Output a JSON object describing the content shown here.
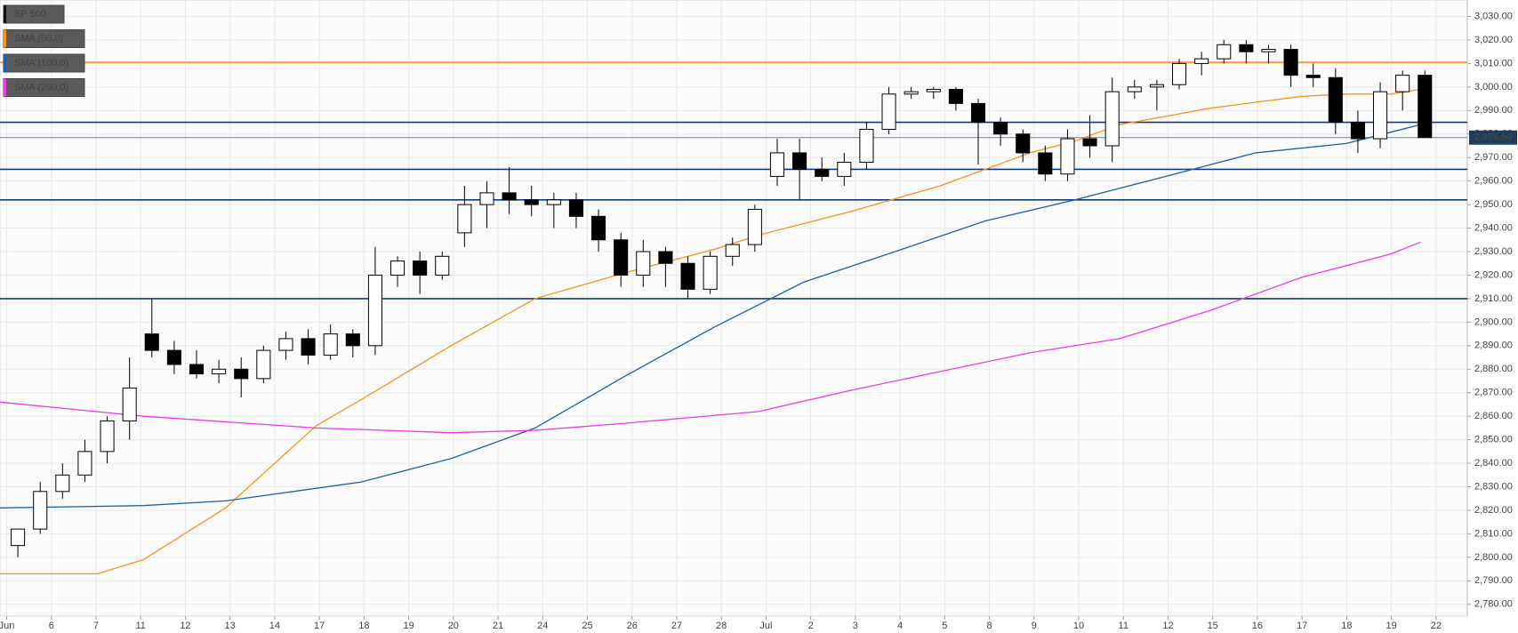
{
  "chart_data": {
    "type": "candlestick",
    "xlim": [
      -0.15,
      32.7
    ],
    "ylim": [
      2775,
      3037
    ],
    "grid": true,
    "xticks": [
      {
        "value": 0,
        "label": "Jun"
      },
      {
        "value": 1,
        "label": "6"
      },
      {
        "value": 2,
        "label": "7"
      },
      {
        "value": 3,
        "label": "11"
      },
      {
        "value": 4,
        "label": "12"
      },
      {
        "value": 5,
        "label": "13"
      },
      {
        "value": 6,
        "label": "14"
      },
      {
        "value": 7,
        "label": "17"
      },
      {
        "value": 8,
        "label": "18"
      },
      {
        "value": 9,
        "label": "19"
      },
      {
        "value": 10,
        "label": "20"
      },
      {
        "value": 11,
        "label": "21"
      },
      {
        "value": 12,
        "label": "24"
      },
      {
        "value": 13,
        "label": "25"
      },
      {
        "value": 14,
        "label": "26"
      },
      {
        "value": 15,
        "label": "27"
      },
      {
        "value": 16,
        "label": "28"
      },
      {
        "value": 17,
        "label": "Jul"
      },
      {
        "value": 18,
        "label": "2"
      },
      {
        "value": 19,
        "label": "3"
      },
      {
        "value": 20,
        "label": "4"
      },
      {
        "value": 21,
        "label": "5"
      },
      {
        "value": 22,
        "label": "8"
      },
      {
        "value": 23,
        "label": "9"
      },
      {
        "value": 24,
        "label": "10"
      },
      {
        "value": 25,
        "label": "11"
      },
      {
        "value": 26,
        "label": "12"
      },
      {
        "value": 27,
        "label": "15"
      },
      {
        "value": 28,
        "label": "16"
      },
      {
        "value": 29,
        "label": "17"
      },
      {
        "value": 30,
        "label": "18"
      },
      {
        "value": 31,
        "label": "19"
      },
      {
        "value": 32,
        "label": "22"
      }
    ],
    "yticks": [
      {
        "value": 2780,
        "label": "2,780.00"
      },
      {
        "value": 2790,
        "label": "2,790.00"
      },
      {
        "value": 2800,
        "label": "2,800.00"
      },
      {
        "value": 2810,
        "label": "2,810.00"
      },
      {
        "value": 2820,
        "label": "2,820.00"
      },
      {
        "value": 2830,
        "label": "2,830.00"
      },
      {
        "value": 2840,
        "label": "2,840.00"
      },
      {
        "value": 2850,
        "label": "2,850.00"
      },
      {
        "value": 2860,
        "label": "2,860.00"
      },
      {
        "value": 2870,
        "label": "2,870.00"
      },
      {
        "value": 2880,
        "label": "2,880.00"
      },
      {
        "value": 2890,
        "label": "2,890.00"
      },
      {
        "value": 2900,
        "label": "2,900.00"
      },
      {
        "value": 2910,
        "label": "2,910.00"
      },
      {
        "value": 2920,
        "label": "2,920.00"
      },
      {
        "value": 2930,
        "label": "2,930.00"
      },
      {
        "value": 2940,
        "label": "2,940.00"
      },
      {
        "value": 2950,
        "label": "2,950.00"
      },
      {
        "value": 2960,
        "label": "2,960.00"
      },
      {
        "value": 2970,
        "label": "2,970.00"
      },
      {
        "value": 2980,
        "label": "2,980.00"
      },
      {
        "value": 2990,
        "label": "2,990.00"
      },
      {
        "value": 3000,
        "label": "3,000.00"
      },
      {
        "value": 3010,
        "label": "3,010.00"
      },
      {
        "value": 3020,
        "label": "3,020.00"
      },
      {
        "value": 3030,
        "label": "3,030.00"
      }
    ],
    "hlines": [
      {
        "value": 3010.5,
        "color": "#f7931e"
      },
      {
        "value": 2985,
        "color": "#0d3c82"
      },
      {
        "value": 2965,
        "color": "#0d3c82"
      },
      {
        "value": 2952,
        "color": "#0d3c82"
      },
      {
        "value": 2910,
        "color": "#0d3c82"
      }
    ],
    "last_price": {
      "value": 2978.5,
      "label": "2,978.50",
      "color": "#1c3d5e"
    },
    "series": [
      {
        "name": "SP 500",
        "type": "candlestick",
        "color": "#000000",
        "up_color": "#ffffff",
        "x": [
          0.25,
          0.75,
          1.25,
          1.75,
          2.25,
          2.75,
          3.25,
          3.75,
          4.25,
          4.75,
          5.25,
          5.75,
          6.25,
          6.75,
          7.25,
          7.75,
          8.25,
          8.75,
          9.25,
          9.75,
          10.25,
          10.75,
          11.25,
          11.75,
          12.25,
          12.75,
          13.25,
          13.75,
          14.25,
          14.75,
          15.25,
          15.75,
          16.25,
          16.75,
          17.25,
          17.75,
          18.25,
          18.75,
          19.25,
          19.75,
          20.25,
          20.75,
          21.25,
          21.75,
          22.25,
          22.75,
          23.25,
          23.75,
          24.25,
          24.75,
          25.25,
          25.75,
          26.25,
          26.75,
          27.25,
          27.75,
          28.25,
          28.75,
          29.25,
          29.75,
          30.25,
          30.75,
          31.25,
          31.75
        ],
        "ohlc": [
          [
            2805,
            2812,
            2800,
            2812
          ],
          [
            2812,
            2832,
            2810,
            2828
          ],
          [
            2828,
            2840,
            2825,
            2835
          ],
          [
            2835,
            2850,
            2832,
            2845
          ],
          [
            2845,
            2860,
            2840,
            2858
          ],
          [
            2858,
            2885,
            2850,
            2872
          ],
          [
            2895,
            2910,
            2885,
            2888
          ],
          [
            2888,
            2892,
            2878,
            2882
          ],
          [
            2882,
            2888,
            2876,
            2878
          ],
          [
            2878,
            2884,
            2874,
            2880
          ],
          [
            2880,
            2885,
            2868,
            2876
          ],
          [
            2876,
            2890,
            2874,
            2888
          ],
          [
            2888,
            2896,
            2884,
            2893
          ],
          [
            2893,
            2897,
            2882,
            2886
          ],
          [
            2886,
            2899,
            2884,
            2895
          ],
          [
            2895,
            2897,
            2885,
            2890
          ],
          [
            2890,
            2932,
            2886,
            2920
          ],
          [
            2920,
            2928,
            2915,
            2926
          ],
          [
            2926,
            2930,
            2912,
            2920
          ],
          [
            2920,
            2930,
            2918,
            2928
          ],
          [
            2938,
            2958,
            2932,
            2950
          ],
          [
            2950,
            2960,
            2940,
            2955
          ],
          [
            2955,
            2966,
            2946,
            2952
          ],
          [
            2952,
            2958,
            2945,
            2950
          ],
          [
            2950,
            2955,
            2940,
            2952
          ],
          [
            2952,
            2955,
            2940,
            2945
          ],
          [
            2945,
            2948,
            2930,
            2935
          ],
          [
            2935,
            2938,
            2915,
            2920
          ],
          [
            2920,
            2935,
            2915,
            2930
          ],
          [
            2930,
            2932,
            2915,
            2925
          ],
          [
            2925,
            2928,
            2910,
            2914
          ],
          [
            2914,
            2930,
            2912,
            2928
          ],
          [
            2928,
            2936,
            2924,
            2933
          ],
          [
            2933,
            2950,
            2930,
            2948
          ],
          [
            2962,
            2978,
            2958,
            2972
          ],
          [
            2972,
            2978,
            2952,
            2965
          ],
          [
            2965,
            2970,
            2960,
            2962
          ],
          [
            2962,
            2972,
            2958,
            2968
          ],
          [
            2968,
            2985,
            2965,
            2982
          ],
          [
            2982,
            3000,
            2980,
            2997
          ],
          [
            2997,
            3000,
            2995,
            2998
          ],
          [
            2998,
            3000,
            2995,
            2999
          ],
          [
            2999,
            3000,
            2990,
            2993
          ],
          [
            2993,
            2995,
            2967,
            2985
          ],
          [
            2985,
            2987,
            2975,
            2980
          ],
          [
            2980,
            2982,
            2968,
            2972
          ],
          [
            2972,
            2975,
            2960,
            2963
          ],
          [
            2963,
            2982,
            2960,
            2978
          ],
          [
            2978,
            2988,
            2970,
            2975
          ],
          [
            2975,
            3004,
            2968,
            2998
          ],
          [
            2998,
            3003,
            2995,
            3000
          ],
          [
            3000,
            3003,
            2990,
            3001
          ],
          [
            3001,
            3012,
            2999,
            3010
          ],
          [
            3010,
            3015,
            3005,
            3012
          ],
          [
            3012,
            3020,
            3010,
            3018
          ],
          [
            3018,
            3020,
            3010,
            3015
          ],
          [
            3015,
            3018,
            3010,
            3016
          ],
          [
            3016,
            3018,
            3000,
            3005
          ],
          [
            3005,
            3010,
            3000,
            3004
          ],
          [
            3004,
            3008,
            2980,
            2985
          ],
          [
            2985,
            2990,
            2972,
            2978
          ],
          [
            2978,
            3002,
            2974,
            2998
          ],
          [
            2998,
            3007,
            2990,
            3005
          ],
          [
            3005,
            3007,
            2978.5,
            2978.5
          ]
        ]
      },
      {
        "name": "SMA (50,0)",
        "type": "line",
        "color": "#f7931e",
        "x": [
          -0.15,
          2.03,
          3.06,
          4.9,
          6.93,
          7.93,
          9.95,
          11.83,
          13.84,
          15.85,
          16.83,
          18.89,
          20.9,
          22.91,
          23.91,
          24.92,
          26.95,
          28.98,
          29.99,
          30.99,
          31.65
        ],
        "values": [
          2793,
          2793,
          2799,
          2821,
          2856,
          2867,
          2890,
          2910,
          2921,
          2931,
          2937,
          2947,
          2958,
          2972,
          2977,
          2984,
          2991,
          2996,
          2997,
          2997,
          2999
        ]
      },
      {
        "name": "SMA (100,0)",
        "type": "line",
        "color": "#1f5fa8",
        "x": [
          -0.15,
          3.06,
          4.9,
          7.93,
          9.95,
          11.83,
          13.84,
          15.85,
          17.84,
          19.89,
          21.9,
          23.91,
          25.95,
          27.96,
          29.99,
          31.65
        ],
        "values": [
          2821,
          2822,
          2824,
          2832,
          2842,
          2855,
          2877,
          2898,
          2917,
          2930,
          2943,
          2952,
          2962,
          2972,
          2976,
          2984
        ]
      },
      {
        "name": "SMA (200,0)",
        "type": "line",
        "color": "#e83ce8",
        "x": [
          -0.15,
          3.06,
          6.93,
          9.95,
          11.83,
          13.84,
          16.83,
          18.89,
          20.9,
          22.91,
          24.92,
          26.95,
          28.98,
          30.99,
          31.65
        ],
        "values": [
          2866,
          2860,
          2855,
          2853,
          2854,
          2857,
          2862,
          2871,
          2879,
          2887,
          2893,
          2905,
          2919,
          2929,
          2934
        ]
      }
    ]
  }
}
